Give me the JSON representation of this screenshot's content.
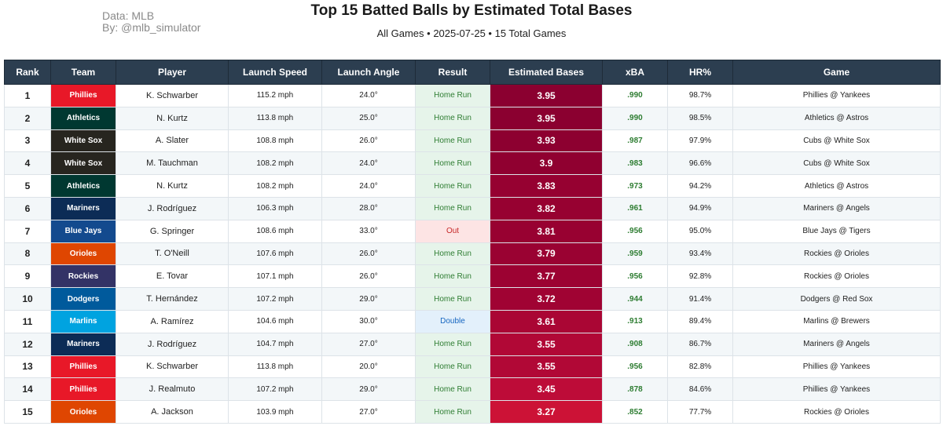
{
  "header": {
    "source_line1": "Data: MLB",
    "source_line2": "By: @mlb_simulator",
    "title": "Top 15 Batted Balls by Estimated Total Bases",
    "subtitle": "All Games • 2025-07-25 • 15 Total Games"
  },
  "columns": [
    "Rank",
    "Team",
    "Player",
    "Launch Speed",
    "Launch Angle",
    "Result",
    "Estimated Bases",
    "xBA",
    "HR%",
    "Game"
  ],
  "colors": {
    "header_bg": "#2c3e50",
    "home_run_bg": "#e6f4ea",
    "home_run_text": "#2e7d32",
    "out_bg": "#fde4e4",
    "out_text": "#c62828",
    "double_bg": "#e3f0fb",
    "double_text": "#1565c0",
    "xba_text": "#2e7d32"
  },
  "rows": [
    {
      "rank": "1",
      "team": "Phillies",
      "team_color": "#e81828",
      "player": "K. Schwarber",
      "speed": "115.2 mph",
      "angle": "24.0°",
      "result": "Home Run",
      "result_type": "hr",
      "bases": "3.95",
      "bases_color": "#8b0030",
      "xba": ".990",
      "hr": "98.7%",
      "game": "Phillies @ Yankees"
    },
    {
      "rank": "2",
      "team": "Athletics",
      "team_color": "#003831",
      "player": "N. Kurtz",
      "speed": "113.8 mph",
      "angle": "25.0°",
      "result": "Home Run",
      "result_type": "hr",
      "bases": "3.95",
      "bases_color": "#8b0030",
      "xba": ".990",
      "hr": "98.5%",
      "game": "Athletics @ Astros"
    },
    {
      "rank": "3",
      "team": "White Sox",
      "team_color": "#27251f",
      "player": "A. Slater",
      "speed": "108.8 mph",
      "angle": "26.0°",
      "result": "Home Run",
      "result_type": "hr",
      "bases": "3.93",
      "bases_color": "#8d0030",
      "xba": ".987",
      "hr": "97.9%",
      "game": "Cubs @ White Sox"
    },
    {
      "rank": "4",
      "team": "White Sox",
      "team_color": "#27251f",
      "player": "M. Tauchman",
      "speed": "108.2 mph",
      "angle": "24.0°",
      "result": "Home Run",
      "result_type": "hr",
      "bases": "3.9",
      "bases_color": "#900030",
      "xba": ".983",
      "hr": "96.6%",
      "game": "Cubs @ White Sox"
    },
    {
      "rank": "5",
      "team": "Athletics",
      "team_color": "#003831",
      "player": "N. Kurtz",
      "speed": "108.2 mph",
      "angle": "24.0°",
      "result": "Home Run",
      "result_type": "hr",
      "bases": "3.83",
      "bases_color": "#960131",
      "xba": ".973",
      "hr": "94.2%",
      "game": "Athletics @ Astros"
    },
    {
      "rank": "6",
      "team": "Mariners",
      "team_color": "#0c2c56",
      "player": "J. Rodríguez",
      "speed": "106.3 mph",
      "angle": "28.0°",
      "result": "Home Run",
      "result_type": "hr",
      "bases": "3.82",
      "bases_color": "#970131",
      "xba": ".961",
      "hr": "94.9%",
      "game": "Mariners @ Angels"
    },
    {
      "rank": "7",
      "team": "Blue Jays",
      "team_color": "#134a8e",
      "player": "G. Springer",
      "speed": "108.6 mph",
      "angle": "33.0°",
      "result": "Out",
      "result_type": "out",
      "bases": "3.81",
      "bases_color": "#980131",
      "xba": ".956",
      "hr": "95.0%",
      "game": "Blue Jays @ Tigers"
    },
    {
      "rank": "8",
      "team": "Orioles",
      "team_color": "#df4601",
      "player": "T. O'Neill",
      "speed": "107.6 mph",
      "angle": "26.0°",
      "result": "Home Run",
      "result_type": "hr",
      "bases": "3.79",
      "bases_color": "#9a0232",
      "xba": ".959",
      "hr": "93.4%",
      "game": "Rockies @ Orioles"
    },
    {
      "rank": "9",
      "team": "Rockies",
      "team_color": "#333366",
      "player": "E. Tovar",
      "speed": "107.1 mph",
      "angle": "26.0°",
      "result": "Home Run",
      "result_type": "hr",
      "bases": "3.77",
      "bases_color": "#9c0232",
      "xba": ".956",
      "hr": "92.8%",
      "game": "Rockies @ Orioles"
    },
    {
      "rank": "10",
      "team": "Dodgers",
      "team_color": "#005a9c",
      "player": "T. Hernández",
      "speed": "107.2 mph",
      "angle": "29.0°",
      "result": "Home Run",
      "result_type": "hr",
      "bases": "3.72",
      "bases_color": "#a00333",
      "xba": ".944",
      "hr": "91.4%",
      "game": "Dodgers @ Red Sox"
    },
    {
      "rank": "11",
      "team": "Marlins",
      "team_color": "#00a3e0",
      "player": "A. Ramírez",
      "speed": "104.6 mph",
      "angle": "30.0°",
      "result": "Double",
      "result_type": "dbl",
      "bases": "3.61",
      "bases_color": "#aa0634",
      "xba": ".913",
      "hr": "89.4%",
      "game": "Marlins @ Brewers"
    },
    {
      "rank": "12",
      "team": "Mariners",
      "team_color": "#0c2c56",
      "player": "J. Rodríguez",
      "speed": "104.7 mph",
      "angle": "27.0°",
      "result": "Home Run",
      "result_type": "hr",
      "bases": "3.55",
      "bases_color": "#b10836",
      "xba": ".908",
      "hr": "86.7%",
      "game": "Mariners @ Angels"
    },
    {
      "rank": "13",
      "team": "Phillies",
      "team_color": "#e81828",
      "player": "K. Schwarber",
      "speed": "113.8 mph",
      "angle": "20.0°",
      "result": "Home Run",
      "result_type": "hr",
      "bases": "3.55",
      "bases_color": "#b10836",
      "xba": ".956",
      "hr": "82.8%",
      "game": "Phillies @ Yankees"
    },
    {
      "rank": "14",
      "team": "Phillies",
      "team_color": "#e81828",
      "player": "J. Realmuto",
      "speed": "107.2 mph",
      "angle": "29.0°",
      "result": "Home Run",
      "result_type": "hr",
      "bases": "3.45",
      "bases_color": "#bd0c38",
      "xba": ".878",
      "hr": "84.6%",
      "game": "Phillies @ Yankees"
    },
    {
      "rank": "15",
      "team": "Orioles",
      "team_color": "#df4601",
      "player": "A. Jackson",
      "speed": "103.9 mph",
      "angle": "27.0°",
      "result": "Home Run",
      "result_type": "hr",
      "bases": "3.27",
      "bases_color": "#cc1236",
      "xba": ".852",
      "hr": "77.7%",
      "game": "Rockies @ Orioles"
    }
  ]
}
